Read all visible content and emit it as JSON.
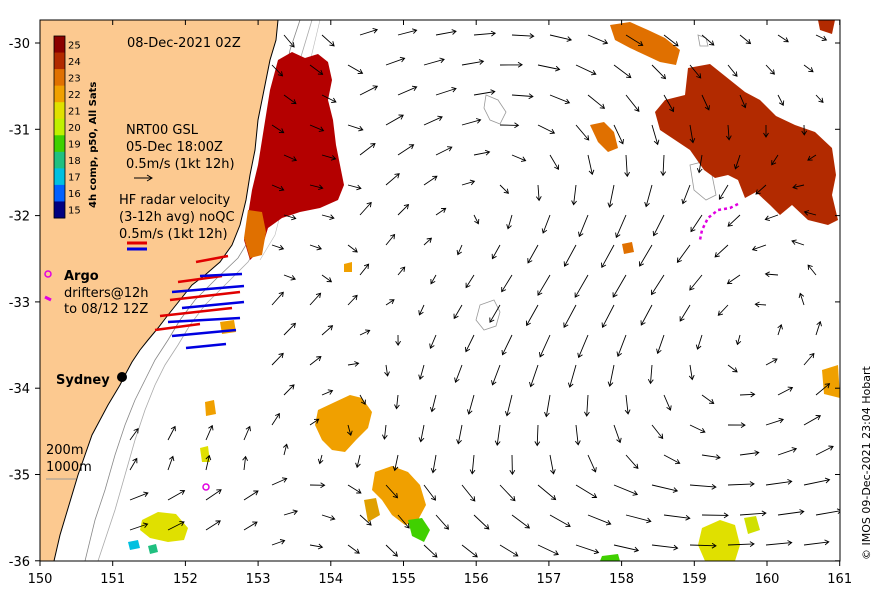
{
  "map": {
    "date_label": "08-Dec-2021 02Z",
    "credit": "© IMOS 09-Dec-2021 23:04 Hobart",
    "x_ticks": [
      "150",
      "151",
      "152",
      "153",
      "154",
      "155",
      "156",
      "157",
      "158",
      "159",
      "160",
      "161"
    ],
    "y_ticks": [
      "-30",
      "-31",
      "-32",
      "-33",
      "-34",
      "-35",
      "-36"
    ],
    "colorbar": {
      "title": "4h comp, p50, All Sats",
      "values": [
        "25",
        "24",
        "23",
        "22",
        "21",
        "20",
        "19",
        "18",
        "17",
        "16",
        "15"
      ],
      "colors": [
        "#8b0000",
        "#b22a00",
        "#e07000",
        "#f0a000",
        "#e0e000",
        "#c0f000",
        "#40d000",
        "#20c080",
        "#00c0e0",
        "#0060ff",
        "#000080"
      ]
    },
    "nrt_label": [
      "NRT00 GSL",
      "05-Dec 18:00Z",
      "0.5m/s (1kt 12h)"
    ],
    "hf_label": [
      "HF radar velocity",
      "(3-12h avg) noQC",
      "0.5m/s (1kt 12h)"
    ],
    "argo_label": "Argo",
    "drifter_label": [
      "drifters@12h",
      "to 08/12 12Z"
    ],
    "city_label": "Sydney",
    "depth_labels": [
      "200m",
      "1000m"
    ],
    "colors": {
      "land": "#fcc990",
      "warm": "#b40000",
      "mid": "#f0a000",
      "argo": "#e000e0",
      "hf_red": "#e00000",
      "hf_blue": "#0000e0"
    }
  }
}
